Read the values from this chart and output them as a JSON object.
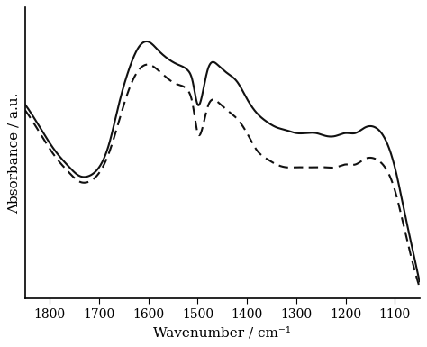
{
  "xlabel": "Wavenumber / cm⁻¹",
  "ylabel": "Absorbance / a.u.",
  "xlim": [
    1850,
    1050
  ],
  "ylim": [
    0.0,
    1.02
  ],
  "background_color": "#ffffff",
  "line_color_solid": "#111111",
  "line_color_dashed": "#111111",
  "line_width": 1.5,
  "solid_x": [
    1850,
    1820,
    1790,
    1760,
    1740,
    1720,
    1700,
    1680,
    1660,
    1640,
    1620,
    1600,
    1580,
    1560,
    1540,
    1520,
    1510,
    1500,
    1490,
    1480,
    1460,
    1440,
    1420,
    1400,
    1380,
    1360,
    1340,
    1320,
    1300,
    1280,
    1260,
    1240,
    1220,
    1200,
    1180,
    1160,
    1140,
    1120,
    1100,
    1080,
    1060,
    1050
  ],
  "solid_y": [
    0.68,
    0.6,
    0.52,
    0.46,
    0.43,
    0.43,
    0.46,
    0.54,
    0.68,
    0.8,
    0.88,
    0.9,
    0.87,
    0.84,
    0.82,
    0.8,
    0.76,
    0.68,
    0.72,
    0.8,
    0.82,
    0.79,
    0.76,
    0.7,
    0.65,
    0.62,
    0.6,
    0.59,
    0.58,
    0.58,
    0.58,
    0.57,
    0.57,
    0.58,
    0.58,
    0.6,
    0.6,
    0.56,
    0.46,
    0.3,
    0.14,
    0.06
  ],
  "dashed_x": [
    1850,
    1820,
    1790,
    1760,
    1740,
    1720,
    1700,
    1680,
    1660,
    1640,
    1620,
    1600,
    1580,
    1560,
    1540,
    1520,
    1510,
    1500,
    1490,
    1480,
    1460,
    1440,
    1420,
    1400,
    1380,
    1360,
    1340,
    1320,
    1300,
    1280,
    1260,
    1240,
    1220,
    1200,
    1180,
    1160,
    1140,
    1120,
    1100,
    1080,
    1060,
    1050
  ],
  "dashed_y": [
    0.66,
    0.58,
    0.5,
    0.44,
    0.41,
    0.41,
    0.44,
    0.51,
    0.62,
    0.73,
    0.8,
    0.82,
    0.8,
    0.77,
    0.75,
    0.73,
    0.68,
    0.58,
    0.6,
    0.67,
    0.69,
    0.66,
    0.63,
    0.58,
    0.52,
    0.49,
    0.47,
    0.46,
    0.46,
    0.46,
    0.46,
    0.46,
    0.46,
    0.47,
    0.47,
    0.49,
    0.49,
    0.46,
    0.38,
    0.24,
    0.1,
    0.04
  ],
  "xticks": [
    1800,
    1700,
    1600,
    1500,
    1400,
    1300,
    1200,
    1100
  ],
  "axis_fontsize": 11,
  "tick_fontsize": 10
}
